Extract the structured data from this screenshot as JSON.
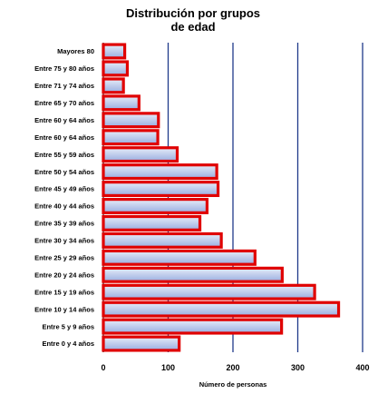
{
  "chart_data": {
    "type": "bar",
    "orientation": "horizontal",
    "title": [
      "Distribución por grupos",
      "de edad"
    ],
    "xlabel": "Número de personas",
    "ylabel": "",
    "xlim": [
      0,
      400
    ],
    "xticks": [
      0,
      100,
      200,
      300,
      400
    ],
    "grid": "vertical",
    "legend": "none",
    "categories": [
      "Mayores 80",
      "Entre 75 y 80 años",
      "Entre 71 y 74 años",
      "Entre 65 y 70 años",
      "Entre 60 y 64 años",
      "Entre 60 y 64 años",
      "Entre 55 y 59 años",
      "Entre 50 y 54 años",
      "Entre 45 y 49 años",
      "Entre 40 y 44 años",
      "Entre 35 y 39 años",
      "Entre 30 y 34 años",
      "Entre 25 y 29 años",
      "Entre 20 y 24 años",
      "Entre 15 y 19 años",
      "Entre 10 y 14 años",
      "Entre 5 y 9 años",
      "Entre 0 y 4 años"
    ],
    "values": [
      33,
      37,
      31,
      55,
      85,
      84,
      114,
      175,
      177,
      160,
      149,
      182,
      234,
      276,
      326,
      363,
      275,
      117
    ],
    "colors": {
      "bar_fill_top": "#e6ecf8",
      "bar_fill_bottom": "#9aaee0",
      "bar_border": "#e00000",
      "gridline": "#1f3a8a",
      "axis": "#000000"
    }
  }
}
